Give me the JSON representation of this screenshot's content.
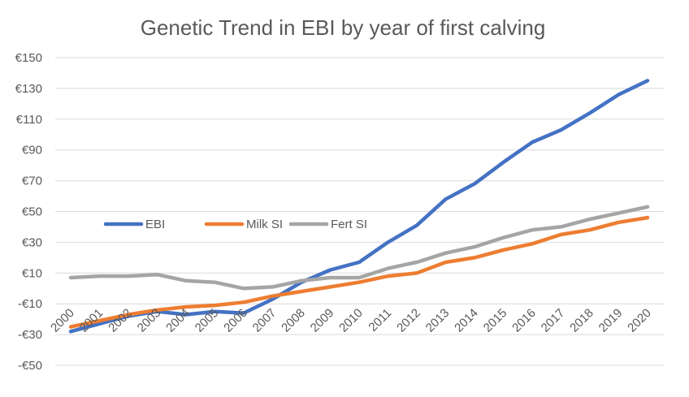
{
  "chart_data": {
    "type": "line",
    "title": "Genetic Trend in EBI by year of first calving",
    "xlabel": "",
    "ylabel": "",
    "ylim": [
      -50,
      150
    ],
    "y_ticks": [
      -50,
      -30,
      -10,
      10,
      30,
      50,
      70,
      90,
      110,
      130,
      150
    ],
    "y_tick_labels": [
      "-€50",
      "-€30",
      "-€10",
      "€10",
      "€30",
      "€50",
      "€70",
      "€90",
      "€110",
      "€130",
      "€150"
    ],
    "grid": true,
    "legend_position": "middle-left",
    "x": [
      "2000",
      "2001",
      "2002",
      "2003",
      "2004",
      "2005",
      "2006",
      "2007",
      "2008",
      "2009",
      "2010",
      "2011",
      "2012",
      "2013",
      "2014",
      "2015",
      "2016",
      "2017",
      "2018",
      "2019",
      "2020"
    ],
    "series": [
      {
        "name": "EBI",
        "color": "#4472c4",
        "values": [
          -28,
          -23,
          -18,
          -15,
          -17,
          -15,
          -16,
          -7,
          4,
          12,
          17,
          30,
          41,
          58,
          68,
          82,
          95,
          103,
          114,
          126,
          135
        ]
      },
      {
        "name": "Milk SI",
        "color": "#ed7d31",
        "values": [
          -25,
          -21,
          -17,
          -14,
          -12,
          -11,
          -9,
          -5,
          -2,
          1,
          4,
          8,
          10,
          17,
          20,
          25,
          29,
          35,
          38,
          43,
          46
        ]
      },
      {
        "name": "Fert SI",
        "color": "#a5a5a5",
        "values": [
          7,
          8,
          8,
          9,
          5,
          4,
          0,
          1,
          5,
          7,
          7,
          13,
          17,
          23,
          27,
          33,
          38,
          40,
          45,
          49,
          53
        ]
      }
    ]
  }
}
